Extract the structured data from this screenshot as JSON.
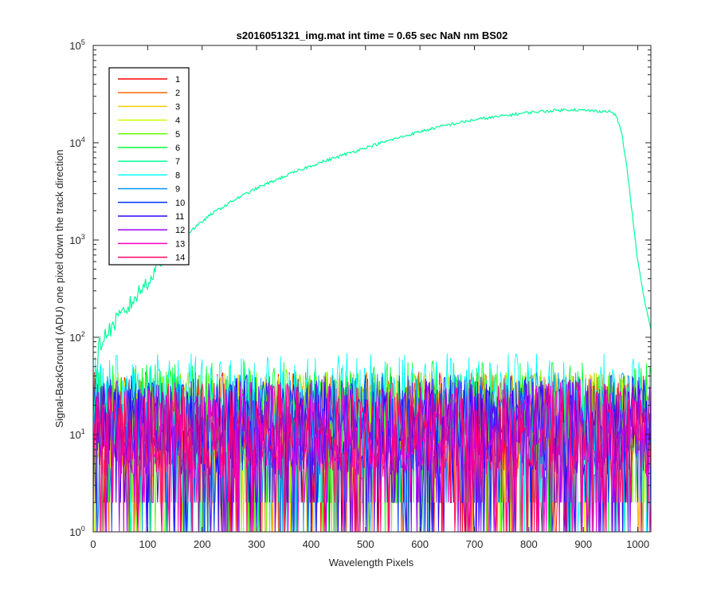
{
  "chart_data": {
    "type": "line",
    "title": "s2016051321_img.mat int time = 0.65 sec  NaN nm BS02",
    "xlabel": "Wavelength Pixels",
    "ylabel": "Signal-BackGround (ADU) one pixel down the track direction",
    "xlim": [
      0,
      1024
    ],
    "ylim": [
      1,
      100000
    ],
    "yscale": "log",
    "x_ticks": [
      "0",
      "100",
      "200",
      "300",
      "400",
      "500",
      "600",
      "700",
      "800",
      "900",
      "1000"
    ],
    "y_ticks": [
      {
        "base": "10",
        "exp": "0"
      },
      {
        "base": "10",
        "exp": "1"
      },
      {
        "base": "10",
        "exp": "2"
      },
      {
        "base": "10",
        "exp": "3"
      },
      {
        "base": "10",
        "exp": "4"
      },
      {
        "base": "10",
        "exp": "5"
      }
    ],
    "legend_position": "top-left",
    "grid": false,
    "noise_series_note_values": {
      "typical_range": [
        1,
        60
      ]
    },
    "series": [
      {
        "name": "1",
        "color": "#ff0000",
        "level": 14
      },
      {
        "name": "2",
        "color": "#ff6600",
        "level": 14
      },
      {
        "name": "3",
        "color": "#ffcc00",
        "level": 14
      },
      {
        "name": "4",
        "color": "#ccff00",
        "level": 14
      },
      {
        "name": "5",
        "color": "#66ff00",
        "level": 15
      },
      {
        "name": "6",
        "color": "#00ff33",
        "level": 18
      },
      {
        "name": "7",
        "color": "#00ff99",
        "x": [
          0,
          10,
          20,
          40,
          60,
          80,
          100,
          120,
          150,
          180,
          220,
          260,
          300,
          350,
          400,
          450,
          500,
          550,
          600,
          650,
          700,
          750,
          800,
          850,
          880,
          900,
          920,
          940,
          950,
          960,
          970,
          980,
          990,
          1000,
          1010,
          1020,
          1024
        ],
        "y": [
          12,
          80,
          100,
          140,
          190,
          270,
          380,
          560,
          850,
          1250,
          1900,
          2600,
          3400,
          4500,
          5800,
          7200,
          8900,
          10800,
          13000,
          15200,
          17200,
          18800,
          20500,
          21500,
          22000,
          21500,
          21200,
          21000,
          21000,
          19000,
          13000,
          5500,
          1800,
          600,
          280,
          150,
          120
        ]
      },
      {
        "name": "8",
        "color": "#00ffff",
        "level": 22
      },
      {
        "name": "9",
        "color": "#0099ff",
        "level": 14
      },
      {
        "name": "10",
        "color": "#0033ff",
        "level": 13
      },
      {
        "name": "11",
        "color": "#3300ff",
        "level": 12
      },
      {
        "name": "12",
        "color": "#9900ff",
        "level": 12
      },
      {
        "name": "13",
        "color": "#ff00cc",
        "level": 11
      },
      {
        "name": "14",
        "color": "#ff0066",
        "level": 11
      }
    ]
  }
}
